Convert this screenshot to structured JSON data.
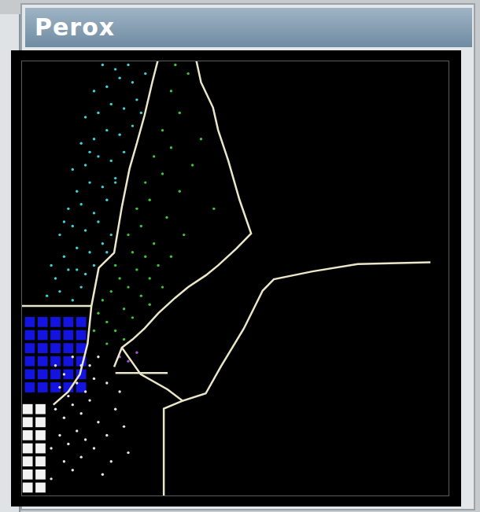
{
  "chart_data": {
    "type": "scatter",
    "title": "Perox",
    "xlim": [
      0,
      100
    ],
    "ylim": [
      0,
      100
    ],
    "tick_labels": false,
    "grid": false,
    "series": [
      {
        "type": "line",
        "color": "#ece6c8",
        "values": [
          [
            31.9,
            100
          ],
          [
            30.6,
            95
          ],
          [
            28.8,
            87.4
          ],
          [
            27,
            81
          ],
          [
            25.3,
            75.2
          ],
          [
            23.5,
            66.4
          ],
          [
            21.7,
            55.9
          ],
          [
            18.1,
            52.4
          ],
          [
            16.4,
            43.7
          ],
          [
            15.5,
            35
          ],
          [
            13.7,
            28
          ],
          [
            11,
            24
          ],
          [
            7.5,
            21
          ]
        ]
      },
      {
        "type": "line",
        "color": "#ece6c8",
        "values": [
          [
            40.9,
            100
          ],
          [
            42,
            95
          ],
          [
            44.8,
            89.2
          ],
          [
            46,
            84
          ],
          [
            48.4,
            76.9
          ],
          [
            51,
            68
          ],
          [
            53.7,
            60.3
          ],
          [
            50.2,
            56.8
          ],
          [
            46,
            53
          ],
          [
            43.1,
            50.7
          ],
          [
            39,
            48
          ],
          [
            35.9,
            45.5
          ],
          [
            32,
            42
          ],
          [
            28.8,
            38.5
          ],
          [
            26,
            36
          ],
          [
            23.5,
            34.1
          ],
          [
            21.7,
            29.7
          ]
        ]
      },
      {
        "type": "line",
        "color": "#ece6c8",
        "values": [
          [
            0,
            43.7
          ],
          [
            16.4,
            43.7
          ]
        ]
      },
      {
        "type": "line",
        "color": "#ece6c8",
        "values": [
          [
            23.5,
            34.1
          ],
          [
            27.9,
            28
          ],
          [
            34.2,
            24.5
          ],
          [
            37.7,
            21.9
          ],
          [
            43.1,
            23.6
          ],
          [
            46.6,
            29.7
          ],
          [
            52,
            38.5
          ],
          [
            56.4,
            47.2
          ],
          [
            59,
            49.8
          ],
          [
            68,
            51.6
          ],
          [
            78.6,
            53.3
          ],
          [
            95.6,
            53.7
          ]
        ]
      },
      {
        "type": "line",
        "color": "#ece6c8",
        "values": [
          [
            22,
            28.3
          ],
          [
            34.2,
            28.3
          ]
        ]
      },
      {
        "type": "line",
        "color": "#ece6c8",
        "values": [
          [
            37.7,
            21.9
          ],
          [
            33.3,
            20.1
          ],
          [
            33.3,
            0
          ]
        ]
      },
      {
        "type": "scatter",
        "color": "#3fd3d8",
        "values": [
          [
            6,
            46
          ],
          [
            9,
            47
          ],
          [
            12,
            45
          ],
          [
            14,
            48
          ],
          [
            8,
            50
          ],
          [
            11,
            52
          ],
          [
            15,
            51
          ],
          [
            17,
            53
          ],
          [
            10,
            55
          ],
          [
            13,
            57
          ],
          [
            16,
            56
          ],
          [
            19,
            58
          ],
          [
            9,
            60
          ],
          [
            12,
            62
          ],
          [
            15,
            61
          ],
          [
            18,
            63
          ],
          [
            21,
            60
          ],
          [
            11,
            66
          ],
          [
            14,
            67
          ],
          [
            17,
            65
          ],
          [
            20,
            68
          ],
          [
            13,
            70
          ],
          [
            16,
            72
          ],
          [
            19,
            71
          ],
          [
            22,
            73
          ],
          [
            12,
            75
          ],
          [
            15,
            76
          ],
          [
            18,
            78
          ],
          [
            21,
            77
          ],
          [
            24,
            79
          ],
          [
            14,
            81
          ],
          [
            17,
            82
          ],
          [
            20,
            84
          ],
          [
            23,
            83
          ],
          [
            26,
            85
          ],
          [
            15,
            87
          ],
          [
            18,
            88
          ],
          [
            21,
            90
          ],
          [
            24,
            89
          ],
          [
            27,
            91
          ],
          [
            17,
            93
          ],
          [
            20,
            94
          ],
          [
            23,
            96
          ],
          [
            26,
            95
          ],
          [
            29,
            97
          ],
          [
            19,
            99
          ],
          [
            22,
            98
          ],
          [
            25,
            99
          ],
          [
            16,
            79
          ],
          [
            10,
            63
          ],
          [
            13,
            52
          ],
          [
            7,
            53
          ],
          [
            28,
            88
          ],
          [
            22,
            72
          ],
          [
            20,
            56
          ]
        ]
      },
      {
        "type": "scatter",
        "color": "#3ec43a",
        "values": [
          [
            18,
            42
          ],
          [
            20,
            40
          ],
          [
            22,
            38
          ],
          [
            19,
            45
          ],
          [
            21,
            47
          ],
          [
            24,
            43
          ],
          [
            26,
            41
          ],
          [
            23,
            50
          ],
          [
            25,
            48
          ],
          [
            28,
            46
          ],
          [
            30,
            44
          ],
          [
            22,
            53
          ],
          [
            27,
            52
          ],
          [
            30,
            50
          ],
          [
            33,
            48
          ],
          [
            26,
            56
          ],
          [
            29,
            55
          ],
          [
            32,
            53
          ],
          [
            25,
            60
          ],
          [
            28,
            62
          ],
          [
            31,
            58
          ],
          [
            35,
            55
          ],
          [
            27,
            66
          ],
          [
            30,
            68
          ],
          [
            34,
            64
          ],
          [
            38,
            60
          ],
          [
            29,
            72
          ],
          [
            33,
            74
          ],
          [
            37,
            70
          ],
          [
            31,
            78
          ],
          [
            35,
            80
          ],
          [
            40,
            76
          ],
          [
            33,
            84
          ],
          [
            37,
            88
          ],
          [
            35,
            93
          ],
          [
            39,
            97
          ],
          [
            42,
            82
          ],
          [
            45,
            66
          ],
          [
            24,
            36
          ],
          [
            20,
            35
          ],
          [
            17,
            38
          ],
          [
            36,
            99
          ]
        ]
      },
      {
        "type": "scatter",
        "color": "#9a55d0",
        "values": [
          [
            25,
            31
          ],
          [
            27,
            33
          ],
          [
            23,
            32
          ]
        ]
      },
      {
        "type": "scatter",
        "color": "#e6e6e6",
        "values": [
          [
            8,
            30
          ],
          [
            10,
            28
          ],
          [
            12,
            32
          ],
          [
            14,
            30
          ],
          [
            9,
            25
          ],
          [
            11,
            23
          ],
          [
            13,
            26
          ],
          [
            15,
            24
          ],
          [
            17,
            27
          ],
          [
            8,
            20
          ],
          [
            10,
            18
          ],
          [
            12,
            21
          ],
          [
            14,
            19
          ],
          [
            16,
            22
          ],
          [
            18,
            17
          ],
          [
            9,
            14
          ],
          [
            11,
            12
          ],
          [
            13,
            15
          ],
          [
            15,
            13
          ],
          [
            17,
            11
          ],
          [
            20,
            14
          ],
          [
            22,
            20
          ],
          [
            24,
            16
          ],
          [
            10,
            8
          ],
          [
            12,
            6
          ],
          [
            14,
            9
          ],
          [
            19,
            5
          ],
          [
            21,
            8
          ],
          [
            7,
            11
          ],
          [
            7,
            4
          ],
          [
            16,
            30
          ],
          [
            18,
            32
          ],
          [
            25,
            10
          ],
          [
            23,
            24
          ],
          [
            20,
            26
          ]
        ]
      },
      {
        "type": "scatter",
        "marker": "square",
        "color": "#f2f2f2",
        "values": [
          [
            1.5,
            2
          ],
          [
            4.5,
            2
          ],
          [
            1.5,
            5
          ],
          [
            4.5,
            5
          ],
          [
            1.5,
            8
          ],
          [
            4.5,
            8
          ],
          [
            1.5,
            11
          ],
          [
            4.5,
            11
          ],
          [
            1.5,
            14
          ],
          [
            4.5,
            14
          ],
          [
            1.5,
            17
          ],
          [
            4.5,
            17
          ],
          [
            1.5,
            20
          ],
          [
            4.5,
            20
          ]
        ]
      },
      {
        "type": "scatter",
        "marker": "square",
        "color": "#1414e0",
        "values": [
          [
            2,
            25
          ],
          [
            5,
            25
          ],
          [
            8,
            25
          ],
          [
            11,
            25
          ],
          [
            14,
            25
          ],
          [
            2,
            28
          ],
          [
            5,
            28
          ],
          [
            8,
            28
          ],
          [
            11,
            28
          ],
          [
            14,
            28
          ],
          [
            2,
            31
          ],
          [
            5,
            31
          ],
          [
            8,
            31
          ],
          [
            11,
            31
          ],
          [
            14,
            31
          ],
          [
            2,
            34
          ],
          [
            5,
            34
          ],
          [
            8,
            34
          ],
          [
            11,
            34
          ],
          [
            14,
            34
          ],
          [
            2,
            37
          ],
          [
            5,
            37
          ],
          [
            8,
            37
          ],
          [
            11,
            37
          ],
          [
            14,
            37
          ],
          [
            2,
            40
          ],
          [
            5,
            40
          ],
          [
            8,
            40
          ],
          [
            11,
            40
          ],
          [
            14,
            40
          ]
        ]
      }
    ]
  }
}
